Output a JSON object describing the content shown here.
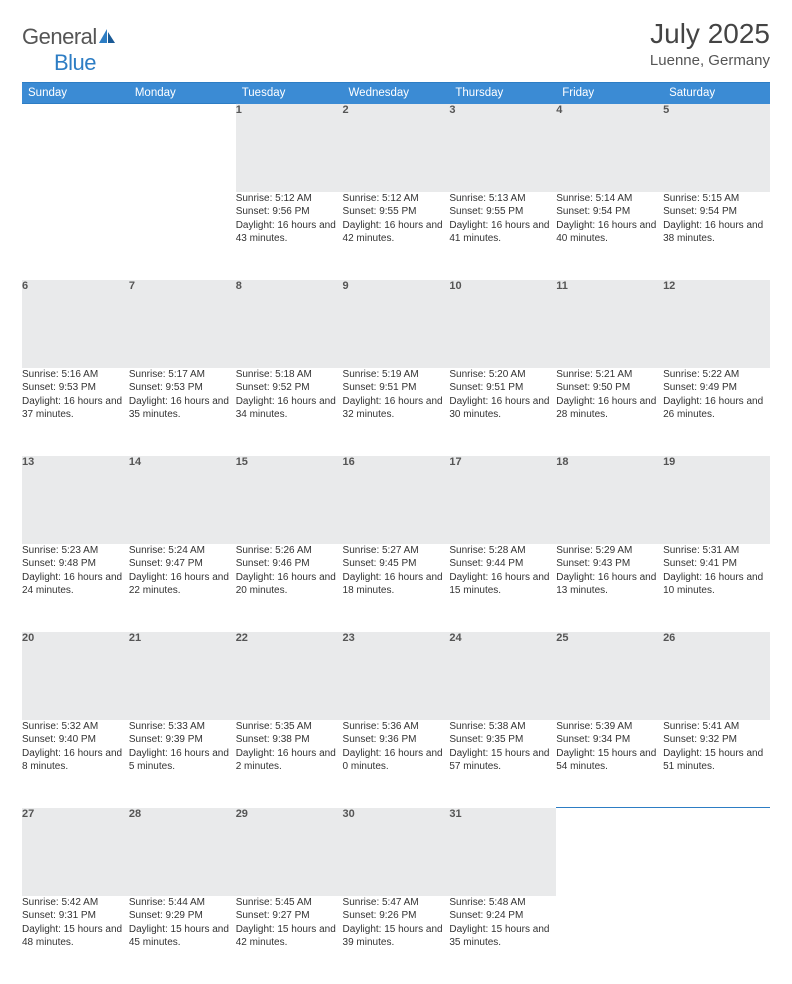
{
  "brand": {
    "name1": "General",
    "name2": "Blue"
  },
  "title": "July 2025",
  "location": "Luenne, Germany",
  "colors": {
    "header_bg": "#3b8bd4",
    "rule": "#2d7dc4",
    "daynum_bg": "#e9eaeb",
    "text": "#333333",
    "muted": "#555555",
    "background": "#ffffff"
  },
  "weekdays": [
    "Sunday",
    "Monday",
    "Tuesday",
    "Wednesday",
    "Thursday",
    "Friday",
    "Saturday"
  ],
  "weeks": [
    {
      "nums": [
        "",
        "",
        "1",
        "2",
        "3",
        "4",
        "5"
      ],
      "cells": [
        "",
        "",
        "Sunrise: 5:12 AM\nSunset: 9:56 PM\nDaylight: 16 hours and 43 minutes.",
        "Sunrise: 5:12 AM\nSunset: 9:55 PM\nDaylight: 16 hours and 42 minutes.",
        "Sunrise: 5:13 AM\nSunset: 9:55 PM\nDaylight: 16 hours and 41 minutes.",
        "Sunrise: 5:14 AM\nSunset: 9:54 PM\nDaylight: 16 hours and 40 minutes.",
        "Sunrise: 5:15 AM\nSunset: 9:54 PM\nDaylight: 16 hours and 38 minutes."
      ]
    },
    {
      "nums": [
        "6",
        "7",
        "8",
        "9",
        "10",
        "11",
        "12"
      ],
      "cells": [
        "Sunrise: 5:16 AM\nSunset: 9:53 PM\nDaylight: 16 hours and 37 minutes.",
        "Sunrise: 5:17 AM\nSunset: 9:53 PM\nDaylight: 16 hours and 35 minutes.",
        "Sunrise: 5:18 AM\nSunset: 9:52 PM\nDaylight: 16 hours and 34 minutes.",
        "Sunrise: 5:19 AM\nSunset: 9:51 PM\nDaylight: 16 hours and 32 minutes.",
        "Sunrise: 5:20 AM\nSunset: 9:51 PM\nDaylight: 16 hours and 30 minutes.",
        "Sunrise: 5:21 AM\nSunset: 9:50 PM\nDaylight: 16 hours and 28 minutes.",
        "Sunrise: 5:22 AM\nSunset: 9:49 PM\nDaylight: 16 hours and 26 minutes."
      ]
    },
    {
      "nums": [
        "13",
        "14",
        "15",
        "16",
        "17",
        "18",
        "19"
      ],
      "cells": [
        "Sunrise: 5:23 AM\nSunset: 9:48 PM\nDaylight: 16 hours and 24 minutes.",
        "Sunrise: 5:24 AM\nSunset: 9:47 PM\nDaylight: 16 hours and 22 minutes.",
        "Sunrise: 5:26 AM\nSunset: 9:46 PM\nDaylight: 16 hours and 20 minutes.",
        "Sunrise: 5:27 AM\nSunset: 9:45 PM\nDaylight: 16 hours and 18 minutes.",
        "Sunrise: 5:28 AM\nSunset: 9:44 PM\nDaylight: 16 hours and 15 minutes.",
        "Sunrise: 5:29 AM\nSunset: 9:43 PM\nDaylight: 16 hours and 13 minutes.",
        "Sunrise: 5:31 AM\nSunset: 9:41 PM\nDaylight: 16 hours and 10 minutes."
      ]
    },
    {
      "nums": [
        "20",
        "21",
        "22",
        "23",
        "24",
        "25",
        "26"
      ],
      "cells": [
        "Sunrise: 5:32 AM\nSunset: 9:40 PM\nDaylight: 16 hours and 8 minutes.",
        "Sunrise: 5:33 AM\nSunset: 9:39 PM\nDaylight: 16 hours and 5 minutes.",
        "Sunrise: 5:35 AM\nSunset: 9:38 PM\nDaylight: 16 hours and 2 minutes.",
        "Sunrise: 5:36 AM\nSunset: 9:36 PM\nDaylight: 16 hours and 0 minutes.",
        "Sunrise: 5:38 AM\nSunset: 9:35 PM\nDaylight: 15 hours and 57 minutes.",
        "Sunrise: 5:39 AM\nSunset: 9:34 PM\nDaylight: 15 hours and 54 minutes.",
        "Sunrise: 5:41 AM\nSunset: 9:32 PM\nDaylight: 15 hours and 51 minutes."
      ]
    },
    {
      "nums": [
        "27",
        "28",
        "29",
        "30",
        "31",
        "",
        ""
      ],
      "cells": [
        "Sunrise: 5:42 AM\nSunset: 9:31 PM\nDaylight: 15 hours and 48 minutes.",
        "Sunrise: 5:44 AM\nSunset: 9:29 PM\nDaylight: 15 hours and 45 minutes.",
        "Sunrise: 5:45 AM\nSunset: 9:27 PM\nDaylight: 15 hours and 42 minutes.",
        "Sunrise: 5:47 AM\nSunset: 9:26 PM\nDaylight: 15 hours and 39 minutes.",
        "Sunrise: 5:48 AM\nSunset: 9:24 PM\nDaylight: 15 hours and 35 minutes.",
        "",
        ""
      ]
    }
  ]
}
